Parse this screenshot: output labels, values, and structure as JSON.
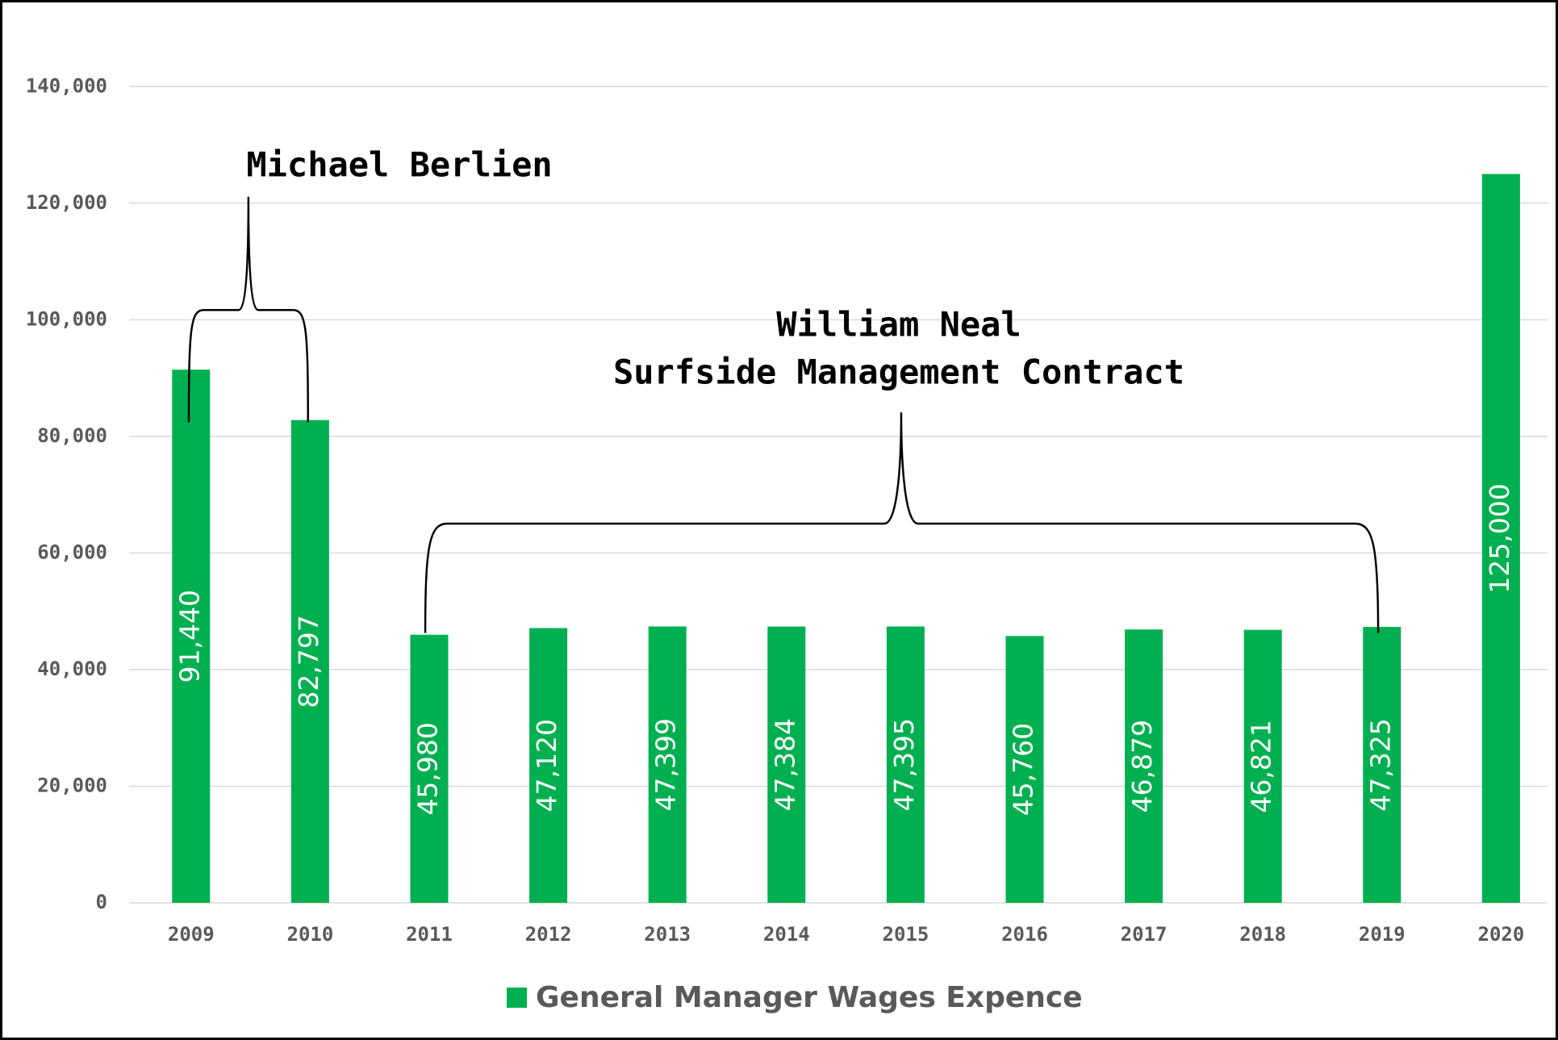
{
  "chart_data": {
    "type": "bar",
    "categories": [
      "2009",
      "2010",
      "2011",
      "2012",
      "2013",
      "2014",
      "2015",
      "2016",
      "2017",
      "2018",
      "2019",
      "2020"
    ],
    "series": [
      {
        "name": "General Manager Wages Expence",
        "color": "#00b050",
        "values": [
          91440,
          82797,
          45980,
          47120,
          47399,
          47384,
          47395,
          45760,
          46879,
          46821,
          47325,
          125000
        ],
        "value_labels": [
          "91,440",
          "82,797",
          "45,980",
          "47,120",
          "47,399",
          "47,384",
          "47,395",
          "45,760",
          "46,879",
          "46,821",
          "47,325",
          "125,000"
        ]
      }
    ],
    "annotations": [
      "Michael Berlien",
      "William Neal",
      "Surfside Management Contract"
    ],
    "ylim": [
      0,
      150000
    ],
    "yticks": [
      0,
      {
        "value": 20000,
        "label": "20,000"
      },
      {
        "value": 40000,
        "label": "40,000"
      },
      {
        "value": 60000,
        "label": "60,000"
      },
      {
        "value": 80000,
        "label": "80,000"
      },
      {
        "value": 100000,
        "label": "100,000"
      },
      {
        "value": 120000,
        "label": "120,000"
      },
      {
        "value": 140000,
        "label": "140,000"
      }
    ],
    "grid": true,
    "legend": "bottom"
  }
}
